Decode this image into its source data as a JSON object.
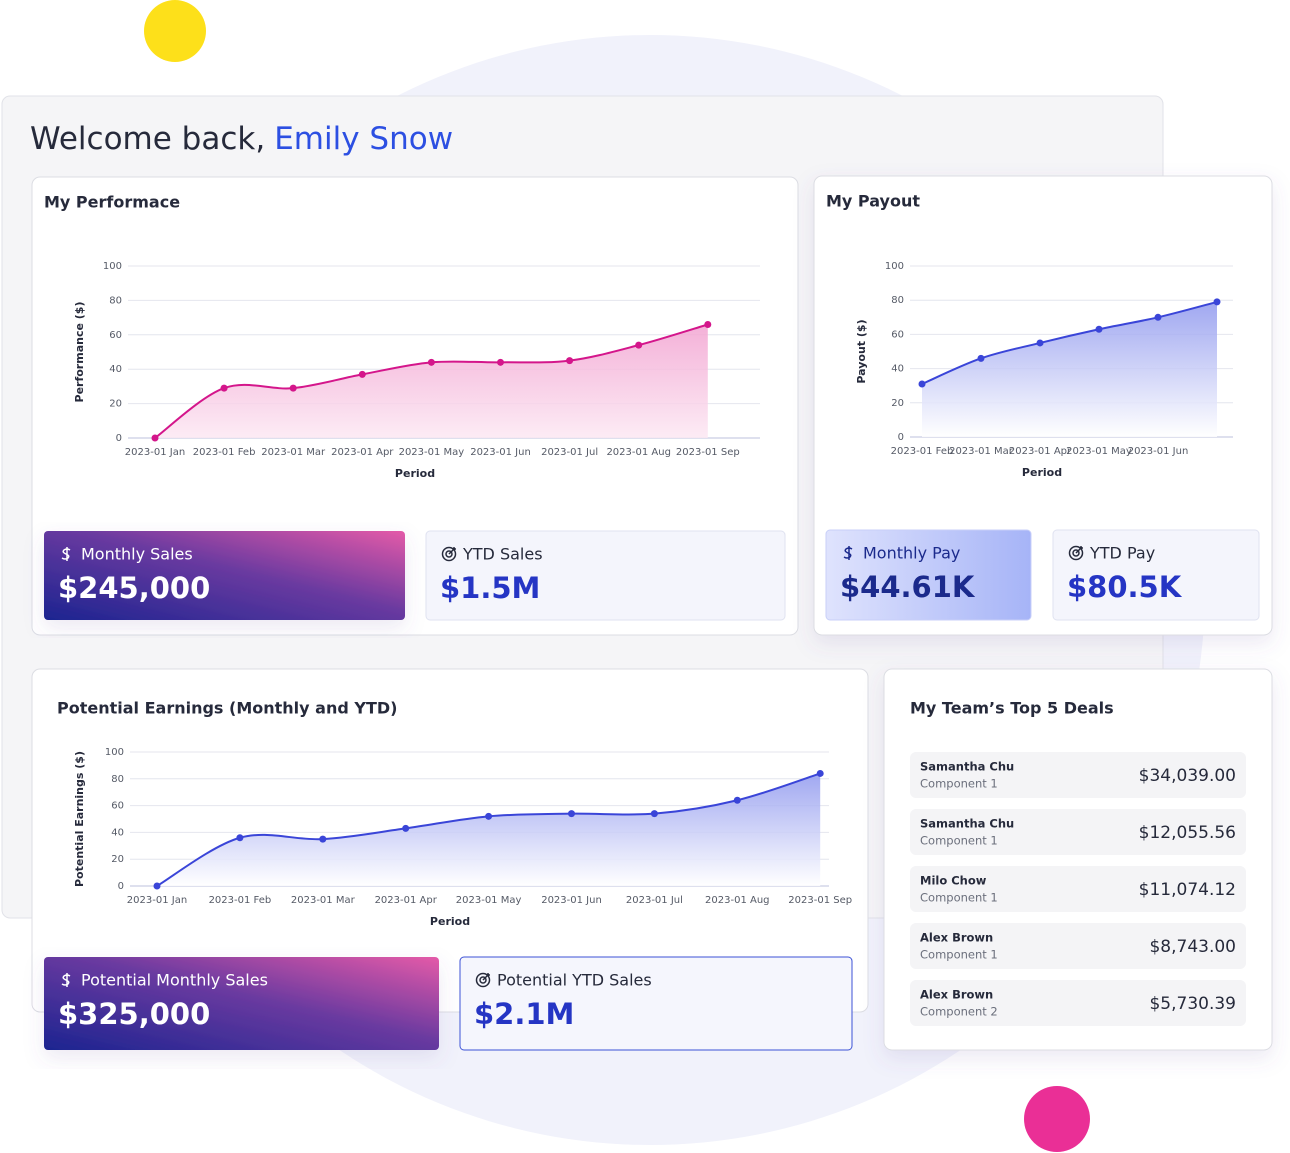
{
  "header": {
    "greeting": "Welcome back,",
    "name": "Emily Snow"
  },
  "chart_data": [
    {
      "type": "line",
      "title": "My Performace",
      "xlabel": "Period",
      "ylabel": "Performance ($)",
      "categories": [
        "2023-01 Jan",
        "2023-01 Feb",
        "2023-01 Mar",
        "2023-01 Apr",
        "2023-01 May",
        "2023-01 Jun",
        "2023-01 Jul",
        "2023-01 Aug",
        "2023-01 Sep"
      ],
      "values": [
        0,
        29,
        29,
        37,
        44,
        44,
        45,
        54,
        66
      ],
      "color": "#d4168b",
      "ylim": [
        0,
        100
      ],
      "yticks": [
        0,
        20,
        40,
        60,
        80,
        100
      ],
      "grid": true
    },
    {
      "type": "line",
      "title": "My Payout",
      "xlabel": "Period",
      "ylabel": "Payout ($)",
      "categories": [
        "2023-01 Feb",
        "2023-01 Mar",
        "2023-01 Apr",
        "2023-01 May",
        "2023-01 Jun",
        null
      ],
      "values": [
        31,
        46,
        55,
        63,
        70,
        79
      ],
      "color": "#3a45d8",
      "ylim": [
        0,
        100
      ],
      "yticks": [
        0,
        20,
        40,
        60,
        80,
        100
      ],
      "grid": true
    },
    {
      "type": "line",
      "title": "Potential Earnings (Monthly and YTD)",
      "xlabel": "Period",
      "ylabel": "Potential Earnings ($)",
      "categories": [
        "2023-01 Jan",
        "2023-01 Feb",
        "2023-01 Mar",
        "2023-01 Apr",
        "2023-01 May",
        "2023-01 Jun",
        "2023-01 Jul",
        "2023-01 Aug",
        "2023-01 Sep"
      ],
      "values": [
        0,
        36,
        35,
        43,
        52,
        54,
        54,
        64,
        84
      ],
      "color": "#3a45d8",
      "ylim": [
        0,
        100
      ],
      "yticks": [
        0,
        20,
        40,
        60,
        80,
        100
      ],
      "grid": true
    }
  ],
  "cards": [
    {
      "label": "Monthly Sales",
      "value": "$245,000"
    },
    {
      "label": "YTD Sales",
      "value": "$1.5M"
    },
    {
      "label": "Monthly Pay",
      "value": "$44.61K"
    },
    {
      "label": "YTD Pay",
      "value": "$80.5K"
    },
    {
      "label": "Potential Monthly Sales",
      "value": "$325,000"
    },
    {
      "label": "Potential YTD Sales",
      "value": "$2.1M"
    }
  ],
  "deals": {
    "title": "My Team’s Top 5 Deals",
    "rows": [
      {
        "name": "Samantha Chu",
        "component": "Component 1",
        "amount": "$34,039.00"
      },
      {
        "name": "Samantha Chu",
        "component": "Component 1",
        "amount": "$12,055.56"
      },
      {
        "name": "Milo Chow",
        "component": "Component 1",
        "amount": "$11,074.12"
      },
      {
        "name": "Alex Brown",
        "component": "Component 1",
        "amount": "$8,743.00"
      },
      {
        "name": "Alex Brown",
        "component": "Component 2",
        "amount": "$5,730.39"
      }
    ]
  }
}
